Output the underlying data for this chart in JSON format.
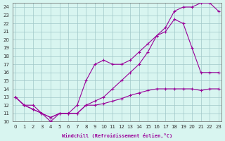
{
  "xlabel": "Windchill (Refroidissement éolien,°C)",
  "bg_color": "#d8f5f0",
  "grid_color": "#a0c8c8",
  "line_color": "#990099",
  "xlim": [
    -0.3,
    23.3
  ],
  "ylim": [
    10,
    24.5
  ],
  "xticks": [
    0,
    1,
    2,
    3,
    4,
    5,
    6,
    7,
    8,
    9,
    10,
    11,
    12,
    13,
    14,
    15,
    16,
    17,
    18,
    19,
    20,
    21,
    22,
    23
  ],
  "yticks": [
    10,
    11,
    12,
    13,
    14,
    15,
    16,
    17,
    18,
    19,
    20,
    21,
    22,
    23,
    24
  ],
  "curve1_x": [
    0,
    1,
    2,
    3,
    4,
    5,
    6,
    7,
    8,
    9,
    10,
    11,
    12,
    13,
    14,
    15,
    16,
    17,
    18,
    19,
    20,
    21,
    22,
    23
  ],
  "curve1_y": [
    13,
    12,
    11.5,
    11,
    10.5,
    11,
    11,
    11,
    12,
    12,
    12.2,
    12.5,
    12.8,
    13.2,
    13.5,
    13.8,
    14,
    14,
    14,
    14,
    14,
    13.8,
    14,
    14
  ],
  "curve2_x": [
    0,
    1,
    2,
    3,
    4,
    5,
    6,
    7,
    8,
    9,
    10,
    11,
    12,
    13,
    14,
    15,
    16,
    17,
    18,
    19,
    20,
    21,
    22,
    23
  ],
  "curve2_y": [
    13,
    12,
    11.5,
    11,
    10.5,
    11,
    11,
    12,
    15,
    17,
    17.5,
    17,
    17,
    17.5,
    18.5,
    19.5,
    20.5,
    21,
    22.5,
    22,
    19,
    16,
    16,
    16
  ],
  "curve3_x": [
    0,
    1,
    2,
    3,
    4,
    5,
    6,
    7,
    8,
    9,
    10,
    11,
    12,
    13,
    14,
    15,
    16,
    17,
    18,
    19,
    20,
    21,
    22,
    23
  ],
  "curve3_y": [
    13,
    12,
    12,
    11,
    10,
    11,
    11,
    11,
    12,
    12.5,
    13,
    14,
    15,
    16,
    17,
    18.5,
    20.5,
    21.5,
    23.5,
    24,
    24,
    24.5,
    24.5,
    23.5
  ]
}
